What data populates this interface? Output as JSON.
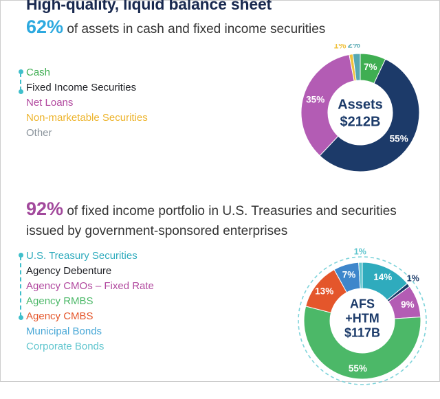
{
  "page": {
    "title": "High-quality, liquid balance sheet"
  },
  "sections": [
    {
      "stat": "62%",
      "stat_color": "#2DA9DF",
      "text": "of assets in cash and fixed income securities"
    },
    {
      "stat": "92%",
      "stat_color": "#A2499C",
      "text": "of fixed income portfolio in U.S. Treasuries and securities issued by government-sponsored enterprises"
    }
  ],
  "chart_data": [
    {
      "type": "pie",
      "donut": true,
      "title": "Assets $212B",
      "center_lines": [
        "Assets",
        "$212B"
      ],
      "legend_position": "left",
      "dashed_outline": false,
      "slices": [
        {
          "label": "Cash",
          "value": 7,
          "pct_label": "7%",
          "color": "#3FAE52",
          "legend_color": "#3FAE52",
          "label_inside": true
        },
        {
          "label": "Fixed Income Securities",
          "value": 55,
          "pct_label": "55%",
          "color": "#1C3A69",
          "legend_color": "#1F2126",
          "label_inside": true
        },
        {
          "label": "Net Loans",
          "value": 35,
          "pct_label": "35%",
          "color": "#B35CB4",
          "legend_color": "#B1489E",
          "label_inside": true
        },
        {
          "label": "Non-marketable Securities",
          "value": 1,
          "pct_label": "1%",
          "color": "#F0C13C",
          "legend_color": "#EDB42D",
          "label_inside": false,
          "label_dx": -14
        },
        {
          "label": "Other",
          "value": 2,
          "pct_label": "2%",
          "color": "#56A8B2",
          "legend_color": "#8B949C",
          "label_inside": false,
          "label_dx": -3
        }
      ]
    },
    {
      "type": "pie",
      "donut": true,
      "title": "AFS +HTM $117B",
      "center_lines": [
        "AFS",
        "+HTM",
        "$117B"
      ],
      "legend_position": "left",
      "dashed_outline": true,
      "outline_color": "#7ED3DA",
      "slices": [
        {
          "label": "U.S. Treasury Securities",
          "value": 14,
          "pct_label": "14%",
          "color": "#2FABBD",
          "legend_color": "#2FABBD",
          "label_inside": true
        },
        {
          "label": "Agency Debenture",
          "value": 1,
          "pct_label": "1%",
          "color": "#1C3A69",
          "legend_color": "#1F2126",
          "label_inside": false,
          "label_dx": -6
        },
        {
          "label": "Agency CMOs – Fixed Rate",
          "value": 9,
          "pct_label": "9%",
          "color": "#B35CB4",
          "legend_color": "#B1489E",
          "label_inside": true
        },
        {
          "label": "Agency RMBS",
          "value": 55,
          "pct_label": "55%",
          "color": "#4CB868",
          "legend_color": "#4CB868",
          "label_inside": true
        },
        {
          "label": "Agency CMBS",
          "value": 13,
          "pct_label": "13%",
          "color": "#E4562B",
          "legend_color": "#E4562B",
          "label_inside": true
        },
        {
          "label": "Municipal Bonds",
          "value": 7,
          "pct_label": "7%",
          "color": "#3E86CB",
          "legend_color": "#47A7D6",
          "label_inside": true
        },
        {
          "label": "Corporate Bonds",
          "value": 1,
          "pct_label": "1%",
          "color": "#5FC5CE",
          "legend_color": "#5FC5CE",
          "label_inside": false
        }
      ]
    }
  ]
}
